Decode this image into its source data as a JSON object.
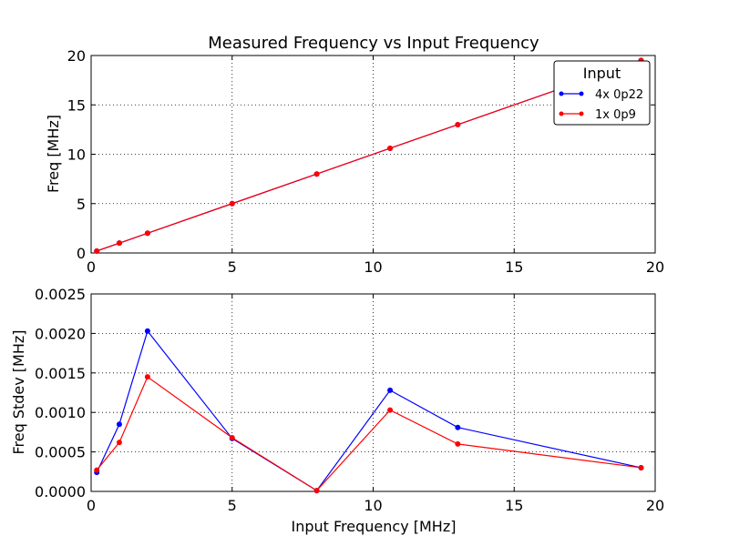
{
  "chart_data": [
    {
      "type": "line",
      "title": "Measured Frequency vs Input Frequency",
      "xlabel": "",
      "ylabel": "Freq [MHz]",
      "xlim": [
        0,
        20
      ],
      "ylim": [
        0,
        20
      ],
      "grid": true,
      "x_ticks": [
        "0",
        "5",
        "10",
        "15",
        "20"
      ],
      "y_ticks": [
        "0",
        "5",
        "10",
        "15",
        "20"
      ],
      "legend": {
        "title": "Input",
        "placement": "top-right"
      },
      "x": [
        0.2,
        1.0,
        2.0,
        5.0,
        8.0,
        10.6,
        13.0,
        19.5
      ],
      "series": [
        {
          "name": "4x 0p22",
          "color": "#0000ff",
          "values": [
            0.2,
            1.0,
            2.0,
            5.0,
            8.0,
            10.6,
            13.0,
            19.5
          ]
        },
        {
          "name": "1x 0p9",
          "color": "#ff0000",
          "values": [
            0.2,
            1.0,
            2.0,
            5.0,
            8.0,
            10.6,
            13.0,
            19.5
          ]
        }
      ]
    },
    {
      "type": "line",
      "title": "",
      "xlabel": "Input Frequency [MHz]",
      "ylabel": "Freq Stdev [MHz]",
      "xlim": [
        0,
        20
      ],
      "ylim": [
        0,
        0.0025
      ],
      "grid": true,
      "x_ticks": [
        "0",
        "5",
        "10",
        "15",
        "20"
      ],
      "y_ticks": [
        "0.0000",
        "0.0005",
        "0.0010",
        "0.0015",
        "0.0020",
        "0.0025"
      ],
      "x": [
        0.2,
        1.0,
        2.0,
        5.0,
        8.0,
        10.6,
        13.0,
        19.5
      ],
      "series": [
        {
          "name": "4x 0p22",
          "color": "#0000ff",
          "values": [
            0.00024,
            0.00085,
            0.00203,
            0.00067,
            1e-05,
            0.00128,
            0.00081,
            0.0003
          ]
        },
        {
          "name": "1x 0p9",
          "color": "#ff0000",
          "values": [
            0.00027,
            0.00062,
            0.00145,
            0.00068,
            1e-05,
            0.00103,
            0.0006,
            0.0003
          ]
        }
      ]
    }
  ]
}
